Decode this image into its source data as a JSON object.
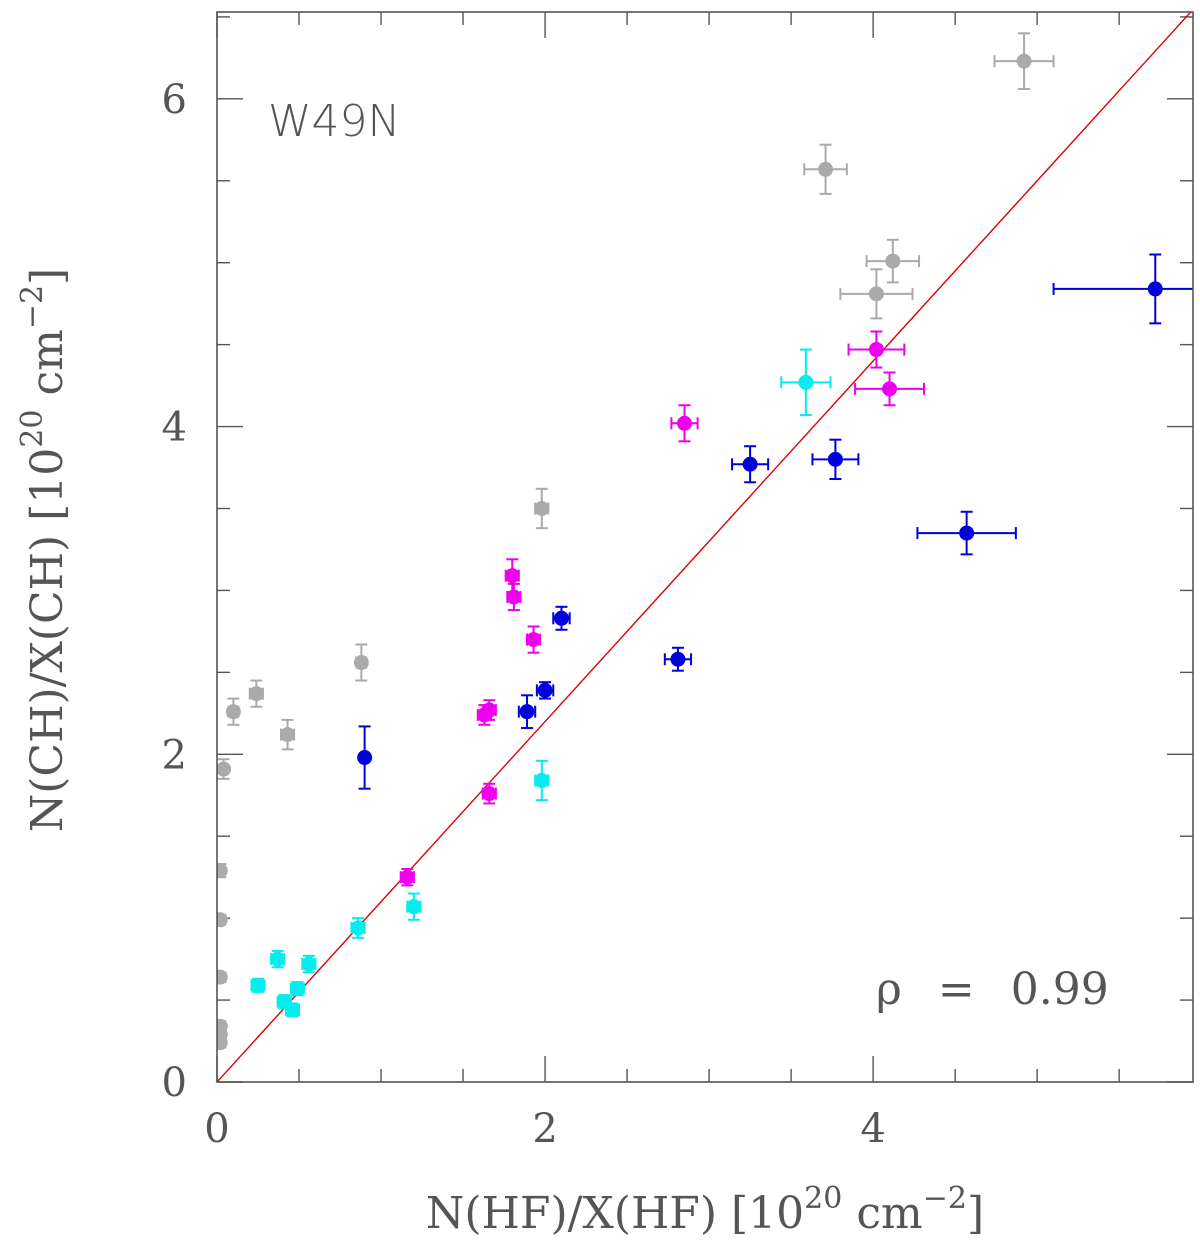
{
  "chart_data": {
    "type": "scatter",
    "title": "",
    "annotation": "W49N",
    "xlabel": {
      "main": "N(HF)/X(HF) [10",
      "sup": "20",
      "mid": " cm",
      "sup2": "−2",
      "end": "]"
    },
    "ylabel": {
      "main": "N(CH)/X(CH) [10",
      "sup": "20",
      "mid": " cm",
      "sup2": "−2",
      "end": "]"
    },
    "xlim": [
      0,
      5.95
    ],
    "ylim": [
      0,
      6.53
    ],
    "xticks_major": [
      0,
      2,
      4
    ],
    "xticks_minor": [
      0.5,
      1,
      1.5,
      2.5,
      3,
      3.5,
      4.5,
      5,
      5.5
    ],
    "xtick_labels": [
      "0",
      "2",
      "4"
    ],
    "yticks_major": [
      0,
      2,
      4,
      6
    ],
    "yticks_minor": [
      0.5,
      1,
      1.5,
      2.5,
      3,
      3.5,
      4.5,
      5,
      5.5,
      6.5
    ],
    "ytick_labels": [
      "0",
      "2",
      "4",
      "6"
    ],
    "fit_line": {
      "slope": 1.1,
      "intercept": 0,
      "color": "#e00000"
    },
    "correlation": {
      "symbol": "ρ",
      "eq": "=",
      "value": "0.99"
    },
    "series": [
      {
        "name": "gray",
        "color": "#aaaaaa",
        "points": [
          {
            "x": 4.92,
            "y": 6.23,
            "xerr": 0.18,
            "yerr": 0.17
          },
          {
            "x": 3.71,
            "y": 5.57,
            "xerr": 0.13,
            "yerr": 0.15
          },
          {
            "x": 4.12,
            "y": 5.01,
            "xerr": 0.16,
            "yerr": 0.13
          },
          {
            "x": 4.02,
            "y": 4.81,
            "xerr": 0.22,
            "yerr": 0.15
          },
          {
            "x": 1.98,
            "y": 3.5,
            "xerr": 0.04,
            "yerr": 0.12
          },
          {
            "x": 0.88,
            "y": 2.56,
            "xerr": 0.03,
            "yerr": 0.11
          },
          {
            "x": 0.24,
            "y": 2.37,
            "xerr": 0.04,
            "yerr": 0.08
          },
          {
            "x": 0.1,
            "y": 2.26,
            "xerr": 0.03,
            "yerr": 0.08
          },
          {
            "x": 0.43,
            "y": 2.12,
            "xerr": 0.04,
            "yerr": 0.09
          },
          {
            "x": 0.04,
            "y": 1.91,
            "xerr": 0.02,
            "yerr": 0.06
          },
          {
            "x": 0.02,
            "y": 1.29,
            "xerr": 0.01,
            "yerr": 0.04
          },
          {
            "x": 0.02,
            "y": 0.99,
            "xerr": 0.01,
            "yerr": 0.03
          },
          {
            "x": 0.02,
            "y": 0.64,
            "xerr": 0.01,
            "yerr": 0.03
          },
          {
            "x": 0.02,
            "y": 0.34,
            "xerr": 0.01,
            "yerr": 0.03
          },
          {
            "x": 0.02,
            "y": 0.29,
            "xerr": 0.01,
            "yerr": 0.03
          },
          {
            "x": 0.02,
            "y": 0.24,
            "xerr": 0.01,
            "yerr": 0.03
          }
        ]
      },
      {
        "name": "blue",
        "color": "#0000dd",
        "points": [
          {
            "x": 5.72,
            "y": 4.84,
            "xerr": 0.62,
            "yerr": 0.21
          },
          {
            "x": 4.57,
            "y": 3.35,
            "xerr": 0.3,
            "yerr": 0.13
          },
          {
            "x": 3.77,
            "y": 3.8,
            "xerr": 0.14,
            "yerr": 0.12
          },
          {
            "x": 3.25,
            "y": 3.77,
            "xerr": 0.11,
            "yerr": 0.11
          },
          {
            "x": 2.81,
            "y": 2.58,
            "xerr": 0.08,
            "yerr": 0.07
          },
          {
            "x": 2.1,
            "y": 2.83,
            "xerr": 0.05,
            "yerr": 0.07
          },
          {
            "x": 2.0,
            "y": 2.39,
            "xerr": 0.05,
            "yerr": 0.05
          },
          {
            "x": 1.89,
            "y": 2.26,
            "xerr": 0.05,
            "yerr": 0.1
          },
          {
            "x": 0.9,
            "y": 1.98,
            "xerr": 0.02,
            "yerr": 0.19
          }
        ]
      },
      {
        "name": "magenta",
        "color": "#ee00ee",
        "points": [
          {
            "x": 4.02,
            "y": 4.47,
            "xerr": 0.17,
            "yerr": 0.11
          },
          {
            "x": 4.1,
            "y": 4.23,
            "xerr": 0.21,
            "yerr": 0.1
          },
          {
            "x": 2.85,
            "y": 4.02,
            "xerr": 0.08,
            "yerr": 0.11
          },
          {
            "x": 1.8,
            "y": 3.09,
            "xerr": 0.04,
            "yerr": 0.1
          },
          {
            "x": 1.81,
            "y": 2.96,
            "xerr": 0.04,
            "yerr": 0.08
          },
          {
            "x": 1.93,
            "y": 2.7,
            "xerr": 0.04,
            "yerr": 0.08
          },
          {
            "x": 1.66,
            "y": 2.27,
            "xerr": 0.04,
            "yerr": 0.06
          },
          {
            "x": 1.63,
            "y": 2.24,
            "xerr": 0.04,
            "yerr": 0.06
          },
          {
            "x": 1.66,
            "y": 1.76,
            "xerr": 0.04,
            "yerr": 0.06
          },
          {
            "x": 1.16,
            "y": 1.25,
            "xerr": 0.04,
            "yerr": 0.05
          }
        ]
      },
      {
        "name": "cyan",
        "color": "#00eeee",
        "points": [
          {
            "x": 3.59,
            "y": 4.27,
            "xerr": 0.15,
            "yerr": 0.2
          },
          {
            "x": 1.98,
            "y": 1.84,
            "xerr": 0.04,
            "yerr": 0.12
          },
          {
            "x": 1.2,
            "y": 1.07,
            "xerr": 0.04,
            "yerr": 0.08
          },
          {
            "x": 0.86,
            "y": 0.94,
            "xerr": 0.04,
            "yerr": 0.06
          },
          {
            "x": 0.37,
            "y": 0.75,
            "xerr": 0.04,
            "yerr": 0.05
          },
          {
            "x": 0.56,
            "y": 0.72,
            "xerr": 0.04,
            "yerr": 0.05
          },
          {
            "x": 0.25,
            "y": 0.59,
            "xerr": 0.04,
            "yerr": 0.04
          },
          {
            "x": 0.49,
            "y": 0.57,
            "xerr": 0.04,
            "yerr": 0.04
          },
          {
            "x": 0.41,
            "y": 0.49,
            "xerr": 0.04,
            "yerr": 0.04
          },
          {
            "x": 0.46,
            "y": 0.44,
            "xerr": 0.04,
            "yerr": 0.04
          }
        ]
      }
    ]
  }
}
